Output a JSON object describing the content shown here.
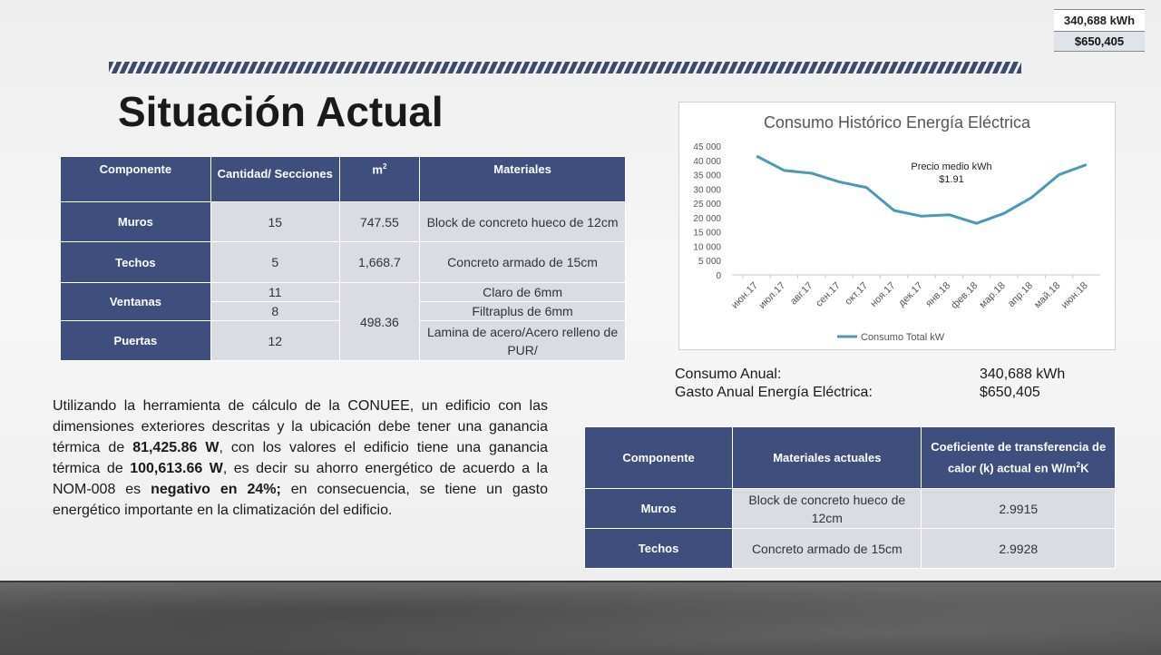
{
  "top_box": {
    "kwh": "340,688 kWh",
    "cost": "$650,405"
  },
  "title": "Situación Actual",
  "table1": {
    "headers": [
      "Componente",
      "Cantidad/ Secciones",
      "m",
      "2",
      "Materiales"
    ],
    "rows": [
      {
        "component": "Muros",
        "qty": "15",
        "m2": "747.55",
        "material": "Block de concreto hueco de 12cm"
      },
      {
        "component": "Techos",
        "qty": "5",
        "m2": "1,668.7",
        "material": "Concreto armado de 15cm"
      },
      {
        "component": "Ventanas",
        "qty_a": "11",
        "qty_b": "8",
        "m2": "498.36",
        "material_a": "Claro de 6mm",
        "material_b": "Filtraplus de 6mm"
      },
      {
        "component": "Puertas",
        "qty": "12",
        "material": "Lamina de acero/Acero relleno de PUR/"
      }
    ]
  },
  "paragraph": {
    "p1": "Utilizando la herramienta de cálculo de la CONUEE, un edificio con las dimensiones exteriores descritas y la ubicación debe tener una ganancia térmica de ",
    "b1": "81,425.86 W",
    "p2": ", con los valores el edificio tiene una ganancia térmica de ",
    "b2": "100,613.66 W",
    "p3": ", es decir su ahorro energético de acuerdo a la NOM-008 es ",
    "b3": "negativo en 24%;",
    "p4": " en consecuencia, se tiene un gasto energético importante en la climatización del edificio."
  },
  "chart_data": {
    "type": "line",
    "title": "Consumo Histórico Energía Eléctrica",
    "categories": [
      "июн.17",
      "июл.17",
      "авг.17",
      "сен.17",
      "окт.17",
      "ноя.17",
      "дек.17",
      "янв.18",
      "фев.18",
      "мар.18",
      "апр.18",
      "май.18",
      "июн.18"
    ],
    "series": [
      {
        "name": "Consumo Total kW",
        "values": [
          41500,
          36500,
          35500,
          32500,
          30500,
          22500,
          20500,
          21000,
          18000,
          21500,
          27000,
          35000,
          38500
        ]
      }
    ],
    "ylim": [
      0,
      45000
    ],
    "yticks": [
      "0",
      "5 000",
      "10 000",
      "15 000",
      "20 000",
      "25 000",
      "30 000",
      "35 000",
      "40 000",
      "45 000"
    ],
    "annotation": {
      "line1": "Precio medio kWh",
      "line2": "$1.91"
    },
    "legend_position": "bottom",
    "color": "#4a9ab5"
  },
  "consumo": {
    "label1": "Consumo Anual:",
    "value1": "340,688 kWh",
    "label2": "Gasto Anual Energía Eléctrica:",
    "value2": "$650,405"
  },
  "table2": {
    "headers": [
      "Componente",
      "Materiales actuales",
      "Coeficiente de transferencia de calor (k) actual en W/m",
      "2",
      "K"
    ],
    "rows": [
      {
        "component": "Muros",
        "material": "Block de concreto hueco de 12cm",
        "k": "2.9915"
      },
      {
        "component": "Techos",
        "material": "Concreto armado de 15cm",
        "k": "2.9928"
      }
    ]
  }
}
